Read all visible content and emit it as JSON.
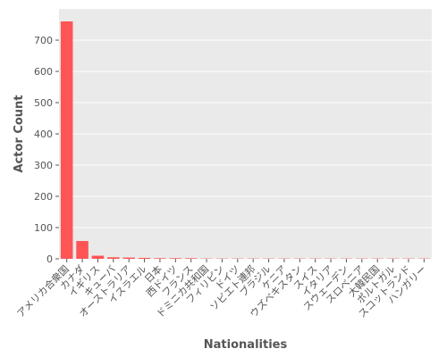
{
  "chart_data": {
    "type": "bar",
    "title": "",
    "xlabel": "Nationalities",
    "ylabel": "Actor Count",
    "categories": [
      "アメリカ合衆国",
      "カナダ",
      "イギリス",
      "キューバ",
      "オーストラリア",
      "イスラエル",
      "日本",
      "西ドイツ",
      "フランス",
      "ドミニカ共和国",
      "フィリピン",
      "ドイツ",
      "ソビエト連邦",
      "ブラジル",
      "ケニア",
      "ウズベキスタン",
      "スイス",
      "イタリア",
      "スウェーデン",
      "スロベニア",
      "大韓民国",
      "ポルトガル",
      "スコットランド",
      "ハンガリー"
    ],
    "values": [
      760,
      57,
      10,
      5,
      4,
      3,
      2,
      2,
      2,
      1,
      1,
      1,
      1,
      1,
      1,
      1,
      1,
      1,
      1,
      1,
      1,
      1,
      1,
      1
    ],
    "yticks": [
      0,
      100,
      200,
      300,
      400,
      500,
      600,
      700
    ],
    "ylim": [
      0,
      800
    ],
    "bar_color": "#ff5555",
    "grid": true,
    "plot_background": "#eaeaea",
    "grid_color": "#ffffff"
  }
}
